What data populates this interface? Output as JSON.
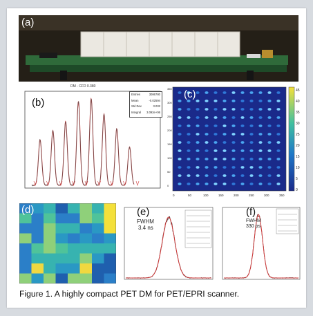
{
  "panels": {
    "a": {
      "label": "(a)"
    },
    "b": {
      "label": "(b)",
      "title": "DM - CFD 0.380",
      "stats": [
        {
          "key": "Entries",
          "value": "3086780"
        },
        {
          "key": "Mean",
          "value": "-0.02594"
        },
        {
          "key": "Std Dev",
          "value": "3.032"
        },
        {
          "key": "Integral",
          "value": "3.092e+06"
        }
      ]
    },
    "c": {
      "label": "(c)",
      "colorbar_ticks": [
        "45",
        "40",
        "35",
        "30",
        "25",
        "20",
        "15",
        "10",
        "5",
        "0"
      ],
      "x_ticks": [
        "0",
        "50",
        "100",
        "150",
        "200",
        "250",
        "300",
        "350"
      ],
      "y_ticks": [
        "350",
        "300",
        "250",
        "200",
        "150",
        "100",
        "50",
        "0"
      ]
    },
    "d": {
      "label": "(d)"
    },
    "e": {
      "label": "(e)",
      "annotation_title": "FWHM",
      "annotation_value": "3.4 ns"
    },
    "f": {
      "label": "(f)",
      "annotation_title": "FWHM",
      "annotation_value": "330 ps"
    }
  },
  "caption": "Figure 1. A highly compact PET DM for PET/EPRI scanner.",
  "colors": {
    "background": "#d7dbe0",
    "frame": "#ffffff",
    "pcb_green": "#2f6a3a",
    "curve_red": "#d23a3a",
    "heatmap_dark": "#1a2a8a",
    "heatmap_bright": "#f4e03a"
  }
}
